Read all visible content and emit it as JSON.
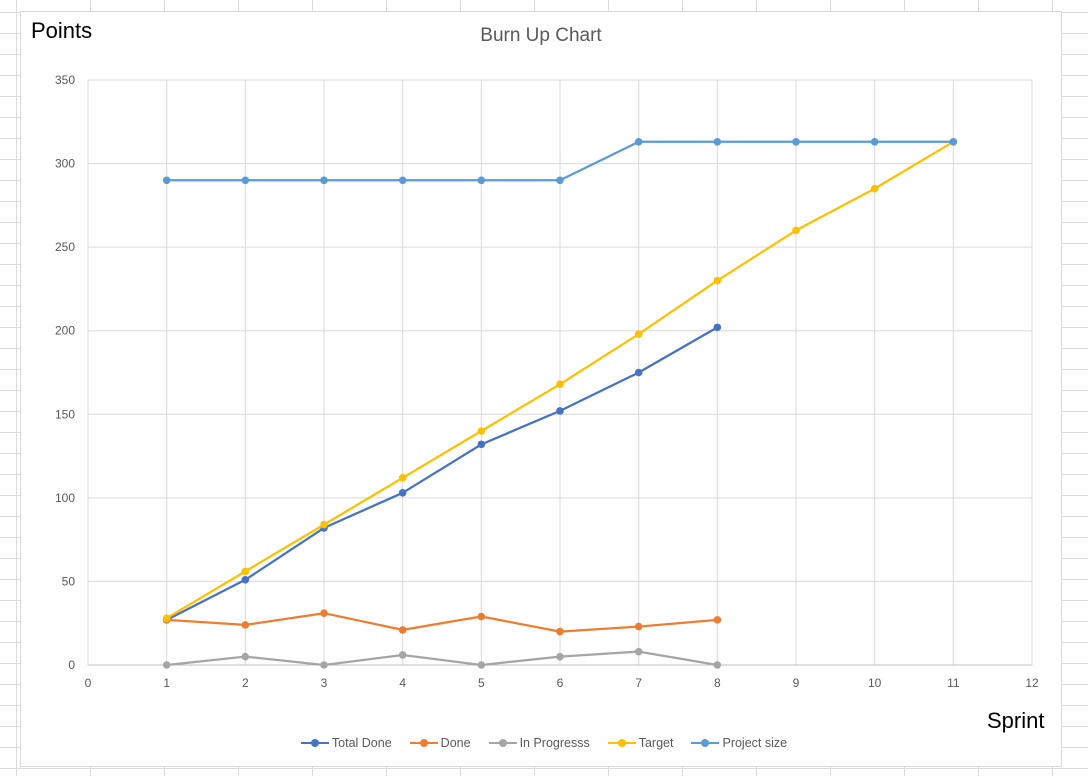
{
  "chart_data": {
    "type": "line",
    "title": "Burn Up Chart",
    "xlabel": "Sprint",
    "ylabel": "Points",
    "xlim": [
      0,
      12
    ],
    "ylim": [
      0,
      350
    ],
    "x_ticks": [
      0,
      1,
      2,
      3,
      4,
      5,
      6,
      7,
      8,
      9,
      10,
      11,
      12
    ],
    "y_ticks": [
      0,
      50,
      100,
      150,
      200,
      250,
      300,
      350
    ],
    "grid": true,
    "legend_position": "bottom",
    "series": [
      {
        "name": "Total Done",
        "color": "#4472c4",
        "x": [
          1,
          2,
          3,
          4,
          5,
          6,
          7,
          8
        ],
        "values": [
          27,
          51,
          82,
          103,
          132,
          152,
          175,
          202
        ]
      },
      {
        "name": "Done",
        "color": "#ed7d31",
        "x": [
          1,
          2,
          3,
          4,
          5,
          6,
          7,
          8
        ],
        "values": [
          27,
          24,
          31,
          21,
          29,
          20,
          23,
          27
        ]
      },
      {
        "name": "In Progresss",
        "color": "#a5a5a5",
        "x": [
          1,
          2,
          3,
          4,
          5,
          6,
          7,
          8
        ],
        "values": [
          0,
          5,
          0,
          6,
          0,
          5,
          8,
          0
        ]
      },
      {
        "name": "Target",
        "color": "#ffc000",
        "x": [
          1,
          2,
          3,
          4,
          5,
          6,
          7,
          8,
          9,
          10,
          11
        ],
        "values": [
          28,
          56,
          84,
          112,
          140,
          168,
          198,
          230,
          260,
          285,
          313
        ]
      },
      {
        "name": "Project size",
        "color": "#5b9bd5",
        "x": [
          1,
          2,
          3,
          4,
          5,
          6,
          7,
          8,
          9,
          10,
          11
        ],
        "values": [
          290,
          290,
          290,
          290,
          290,
          290,
          313,
          313,
          313,
          313,
          313
        ]
      }
    ]
  }
}
